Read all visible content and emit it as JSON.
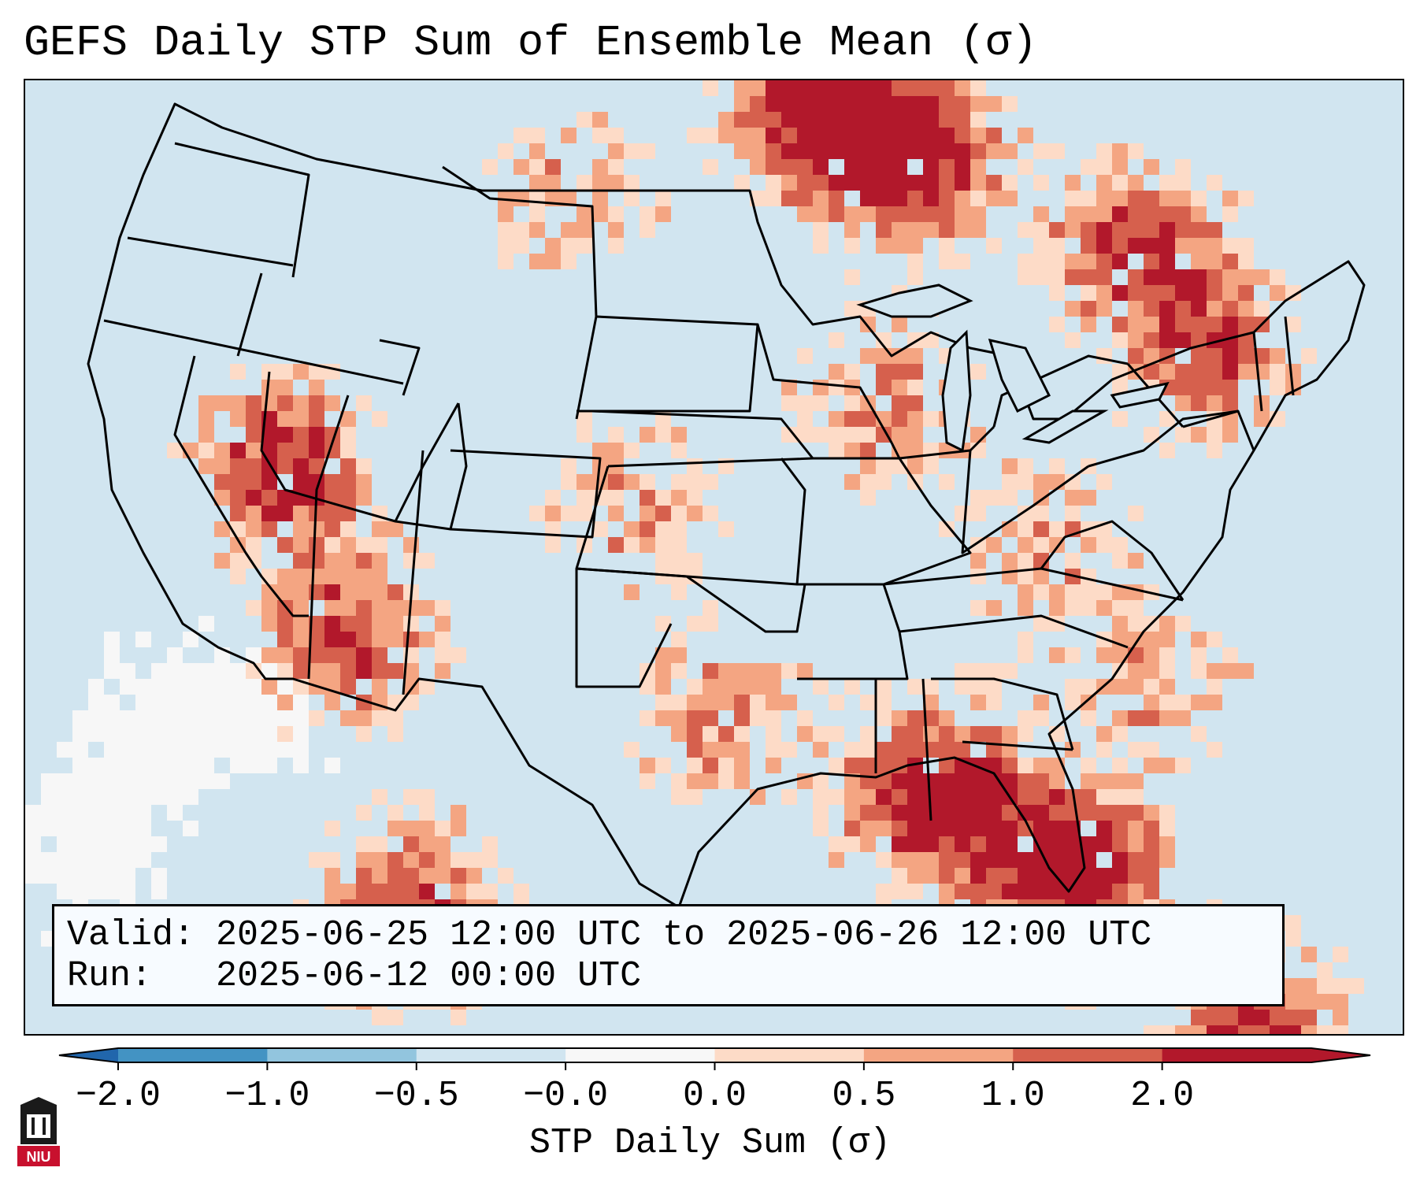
{
  "title": "GEFS Daily STP Sum of Ensemble Mean (σ)",
  "info": {
    "valid_label": "Valid:",
    "valid_value": "2025-06-25 12:00 UTC to 2025-06-26 12:00 UTC",
    "run_label": "Run:",
    "run_value": "2025-06-12 00:00 UTC"
  },
  "colorbar": {
    "label": "STP Daily Sum (σ)",
    "ticks": [
      "−2.0",
      "−1.0",
      "−0.5",
      "−0.0",
      "0.0",
      "0.5",
      "1.0",
      "2.0"
    ],
    "colors": [
      "#4393c3",
      "#92c5de",
      "#d1e5f0",
      "#f7f7f7",
      "#fddbc7",
      "#f4a582",
      "#d6604d",
      "#b2182b"
    ],
    "extend_low_color": "#2166ac",
    "extend_high_color": "#b2182b"
  },
  "map": {
    "background_color": "#d1e5f0",
    "projection": "Lambert Conformal",
    "region": "Continental United States"
  },
  "logo": {
    "text": "NIU"
  }
}
